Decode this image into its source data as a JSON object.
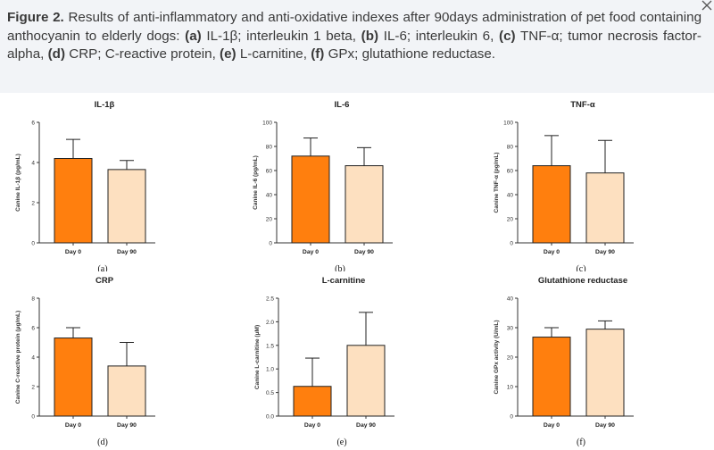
{
  "caption": {
    "label": "Figure 2.",
    "parts": [
      {
        "t": " Results of anti-inflammatory and anti-oxidative indexes after 90days administration of pet food containing anthocyanin to elderly dogs: ",
        "b": false
      },
      {
        "t": "(a)",
        "b": true
      },
      {
        "t": " IL-1β; interleukin 1 beta, ",
        "b": false
      },
      {
        "t": "(b)",
        "b": true
      },
      {
        "t": " IL-6; interleukin 6, ",
        "b": false
      },
      {
        "t": "(c)",
        "b": true
      },
      {
        "t": " TNF-α; tumor necrosis factor-alpha, ",
        "b": false
      },
      {
        "t": "(d)",
        "b": true
      },
      {
        "t": " CRP; C-reactive protein, ",
        "b": false
      },
      {
        "t": "(e)",
        "b": true
      },
      {
        "t": " L-carnitine, ",
        "b": false
      },
      {
        "t": "(f)",
        "b": true
      },
      {
        "t": " GPx; glutathione reductase.",
        "b": false
      }
    ]
  },
  "colors": {
    "day0": "#ff7f0e",
    "day90": "#fde0c0",
    "axis": "#333333",
    "caption_bg": "#f2f4f7"
  },
  "icons": {
    "corner": "collapse-icon"
  },
  "chart_data": [
    {
      "type": "bar",
      "panel": "(a)",
      "title": "IL-1β",
      "ylabel": "Canine IL-1β (pg/mL)",
      "categories": [
        "Day 0",
        "Day 90"
      ],
      "values": [
        4.2,
        3.65
      ],
      "errors": [
        0.95,
        0.45
      ],
      "ylim": [
        0,
        6
      ],
      "yticks": [
        0,
        2,
        4,
        6
      ],
      "tick_labels": [
        "0",
        "2",
        "4",
        "6"
      ]
    },
    {
      "type": "bar",
      "panel": "(b)",
      "title": "IL-6",
      "ylabel": "Canine IL-6 (pg/mL)",
      "categories": [
        "Day 0",
        "Day 90"
      ],
      "values": [
        72,
        64
      ],
      "errors": [
        15,
        15
      ],
      "ylim": [
        0,
        100
      ],
      "yticks": [
        0,
        20,
        40,
        60,
        80,
        100
      ],
      "tick_labels": [
        "0",
        "20",
        "40",
        "60",
        "80",
        "100"
      ]
    },
    {
      "type": "bar",
      "panel": "(c)",
      "title": "TNF-α",
      "ylabel": "Canine TNF-α (pg/mL)",
      "categories": [
        "Day 0",
        "Day 90"
      ],
      "values": [
        64,
        58
      ],
      "errors": [
        25,
        27
      ],
      "ylim": [
        0,
        100
      ],
      "yticks": [
        0,
        20,
        40,
        60,
        80,
        100
      ],
      "tick_labels": [
        "0",
        "20",
        "40",
        "60",
        "80",
        "100"
      ]
    },
    {
      "type": "bar",
      "panel": "(d)",
      "title": "CRP",
      "ylabel": "Canine C-reactive protein (μg/mL)",
      "categories": [
        "Day 0",
        "Day 90"
      ],
      "values": [
        5.3,
        3.4
      ],
      "errors": [
        0.7,
        1.6
      ],
      "ylim": [
        0,
        8
      ],
      "yticks": [
        0,
        2,
        4,
        6,
        8
      ],
      "tick_labels": [
        "0",
        "2",
        "4",
        "6",
        "8"
      ]
    },
    {
      "type": "bar",
      "panel": "(e)",
      "title": "L-carnitine",
      "ylabel": "Canine L-carnitine (μM)",
      "categories": [
        "Day 0",
        "Day 90"
      ],
      "values": [
        0.63,
        1.5
      ],
      "errors": [
        0.6,
        0.7
      ],
      "ylim": [
        0,
        2.5
      ],
      "yticks": [
        0,
        0.5,
        1,
        1.5,
        2,
        2.5
      ],
      "tick_labels": [
        "0.0",
        "0.5",
        "1.0",
        "1.5",
        "2.0",
        "2.5"
      ]
    },
    {
      "type": "bar",
      "panel": "(f)",
      "title": "Glutathione reductase",
      "ylabel": "Canine GPx activity (U/mL)",
      "categories": [
        "Day 0",
        "Day 90"
      ],
      "values": [
        26.8,
        29.5
      ],
      "errors": [
        3.2,
        2.8
      ],
      "ylim": [
        0,
        40
      ],
      "yticks": [
        0,
        10,
        20,
        30,
        40
      ],
      "tick_labels": [
        "0",
        "10",
        "20",
        "30",
        "40"
      ]
    }
  ]
}
